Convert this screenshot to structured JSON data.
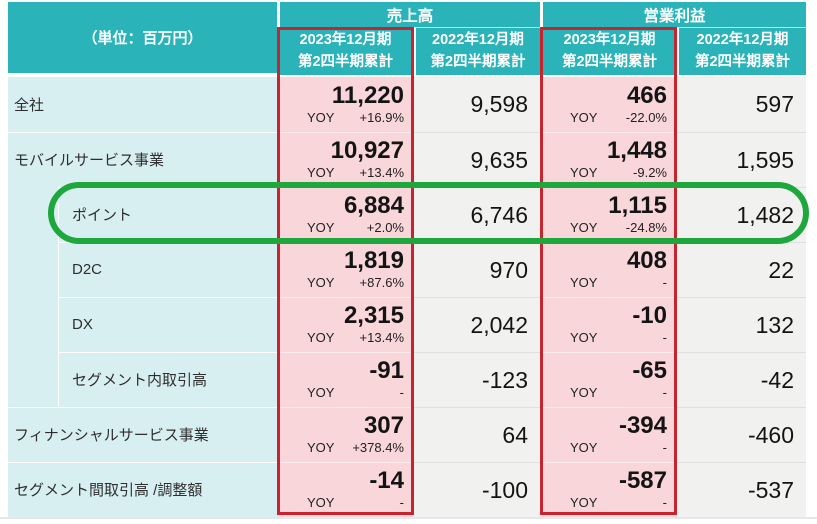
{
  "table": {
    "unit_label": "（単位：百万円）",
    "groups": {
      "sales": "売上高",
      "profit": "営業利益"
    },
    "periods": {
      "current": {
        "line1": "2023年12月期",
        "line2": "第2四半期累計"
      },
      "previous": {
        "line1": "2022年12月期",
        "line2": "第2四半期累計"
      }
    },
    "yoy_label": "YOY",
    "rows": [
      {
        "label": "全社",
        "level": 0,
        "highlighted": false,
        "sales_current": {
          "value": "11,220",
          "yoy": "+16.9%"
        },
        "sales_previous": "9,598",
        "profit_current": {
          "value": "466",
          "yoy": "-22.0%"
        },
        "profit_previous": "597"
      },
      {
        "label": "モバイルサービス事業",
        "level": 0,
        "highlighted": false,
        "sales_current": {
          "value": "10,927",
          "yoy": "+13.4%"
        },
        "sales_previous": "9,635",
        "profit_current": {
          "value": "1,448",
          "yoy": "-9.2%"
        },
        "profit_previous": "1,595"
      },
      {
        "label": "ポイント",
        "level": 1,
        "highlighted": true,
        "sales_current": {
          "value": "6,884",
          "yoy": "+2.0%"
        },
        "sales_previous": "6,746",
        "profit_current": {
          "value": "1,115",
          "yoy": "-24.8%"
        },
        "profit_previous": "1,482"
      },
      {
        "label": "D2C",
        "level": 1,
        "highlighted": false,
        "sales_current": {
          "value": "1,819",
          "yoy": "+87.6%"
        },
        "sales_previous": "970",
        "profit_current": {
          "value": "408",
          "yoy": "-"
        },
        "profit_previous": "22"
      },
      {
        "label": "DX",
        "level": 1,
        "highlighted": false,
        "sales_current": {
          "value": "2,315",
          "yoy": "+13.4%"
        },
        "sales_previous": "2,042",
        "profit_current": {
          "value": "-10",
          "yoy": "-"
        },
        "profit_previous": "132"
      },
      {
        "label": "セグメント内取引高",
        "level": 1,
        "highlighted": false,
        "sales_current": {
          "value": "-91",
          "yoy": "-"
        },
        "sales_previous": "-123",
        "profit_current": {
          "value": "-65",
          "yoy": "-"
        },
        "profit_previous": "-42"
      },
      {
        "label": "フィナンシャルサービス事業",
        "level": 0,
        "highlighted": false,
        "sales_current": {
          "value": "307",
          "yoy": "+378.4%"
        },
        "sales_previous": "64",
        "profit_current": {
          "value": "-394",
          "yoy": "-"
        },
        "profit_previous": "-460"
      },
      {
        "label": "セグメント間取引高 /調整額",
        "level": 0,
        "highlighted": false,
        "sales_current": {
          "value": "-14",
          "yoy": "-"
        },
        "sales_previous": "-100",
        "profit_current": {
          "value": "-587",
          "yoy": "-"
        },
        "profit_previous": "-537"
      }
    ],
    "colors": {
      "header_teal": "#2bb3ba",
      "label_cyan": "#d8eff2",
      "current_pink": "#f8d6d9",
      "previous_gray": "#f1f1f0",
      "current_frame_red": "#c6242f",
      "highlight_green": "#1ea73c"
    }
  },
  "chart_data": {
    "type": "table",
    "title": "セグメント別 売上高・営業利益（単位：百万円）",
    "column_groups": [
      "売上高",
      "営業利益"
    ],
    "columns": [
      "売上高 2023年12月期 第2四半期累計",
      "売上高 2022年12月期 第2四半期累計",
      "営業利益 2023年12月期 第2四半期累計",
      "営業利益 2022年12月期 第2四半期累計"
    ],
    "rows": [
      {
        "label": "全社",
        "sales_2023": 11220,
        "sales_yoy": "+16.9%",
        "sales_2022": 9598,
        "profit_2023": 466,
        "profit_yoy": "-22.0%",
        "profit_2022": 597
      },
      {
        "label": "モバイルサービス事業",
        "sales_2023": 10927,
        "sales_yoy": "+13.4%",
        "sales_2022": 9635,
        "profit_2023": 1448,
        "profit_yoy": "-9.2%",
        "profit_2022": 1595
      },
      {
        "label": "ポイント",
        "sales_2023": 6884,
        "sales_yoy": "+2.0%",
        "sales_2022": 6746,
        "profit_2023": 1115,
        "profit_yoy": "-24.8%",
        "profit_2022": 1482
      },
      {
        "label": "D2C",
        "sales_2023": 1819,
        "sales_yoy": "+87.6%",
        "sales_2022": 970,
        "profit_2023": 408,
        "profit_yoy": "-",
        "profit_2022": 22
      },
      {
        "label": "DX",
        "sales_2023": 2315,
        "sales_yoy": "+13.4%",
        "sales_2022": 2042,
        "profit_2023": -10,
        "profit_yoy": "-",
        "profit_2022": 132
      },
      {
        "label": "セグメント内取引高",
        "sales_2023": -91,
        "sales_yoy": "-",
        "sales_2022": -123,
        "profit_2023": -65,
        "profit_yoy": "-",
        "profit_2022": -42
      },
      {
        "label": "フィナンシャルサービス事業",
        "sales_2023": 307,
        "sales_yoy": "+378.4%",
        "sales_2022": 64,
        "profit_2023": -394,
        "profit_yoy": "-",
        "profit_2022": -460
      },
      {
        "label": "セグメント間取引高 /調整額",
        "sales_2023": -14,
        "sales_yoy": "-",
        "sales_2022": -100,
        "profit_2023": -587,
        "profit_yoy": "-",
        "profit_2022": -537
      }
    ],
    "annotations": [
      "ポイント行が緑色の枠で強調されている"
    ],
    "highlight_row": "ポイント"
  }
}
